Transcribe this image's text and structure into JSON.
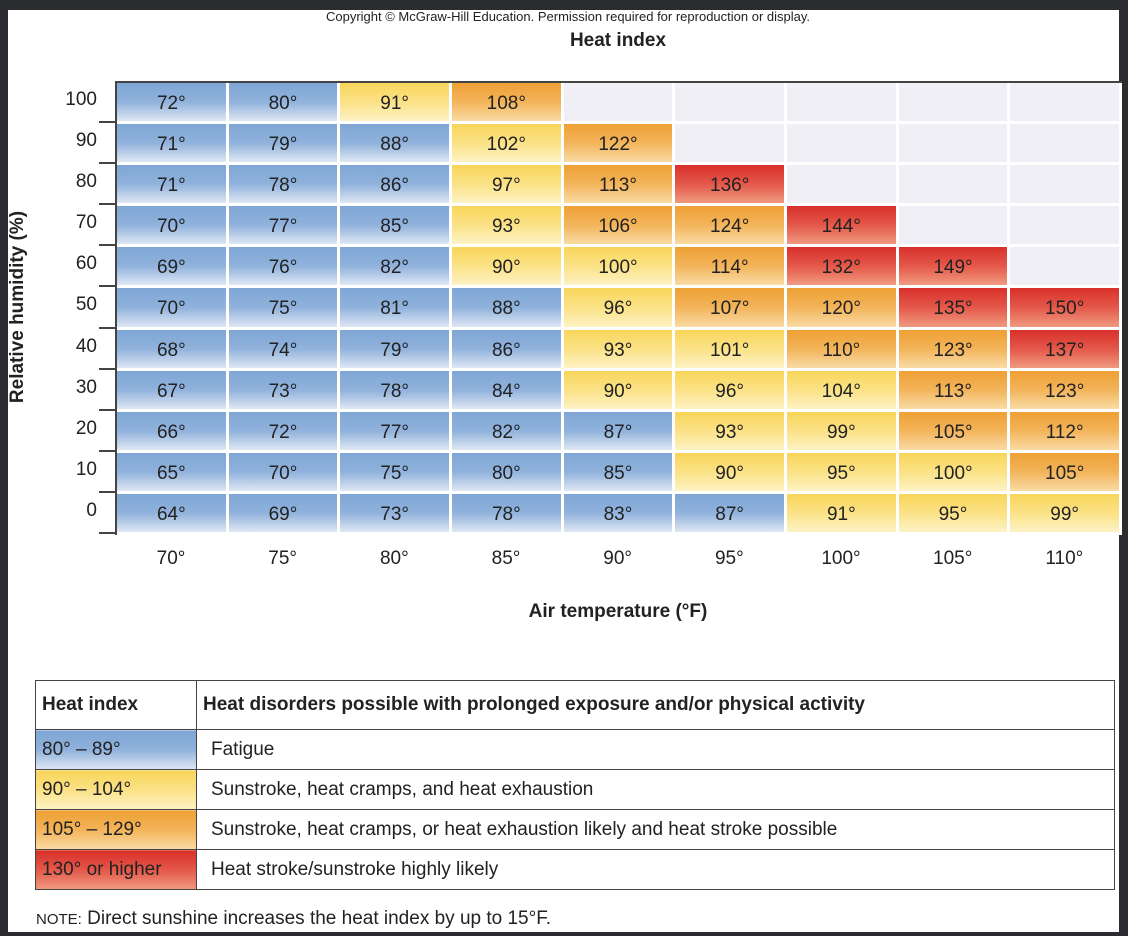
{
  "copyright": "Copyright © McGraw-Hill Education. Permission required for reproduction or display.",
  "chart_data": {
    "type": "heatmap",
    "title": "Heat index",
    "xlabel": "Air temperature (°F)",
    "ylabel": "Relative humidity (%)",
    "x": [
      "70°",
      "75°",
      "80°",
      "85°",
      "90°",
      "95°",
      "100°",
      "105°",
      "110°"
    ],
    "y": [
      "100",
      "90",
      "80",
      "70",
      "60",
      "50",
      "40",
      "30",
      "20",
      "10",
      "0"
    ],
    "values": [
      [
        72,
        80,
        91,
        108,
        null,
        null,
        null,
        null,
        null
      ],
      [
        71,
        79,
        88,
        102,
        122,
        null,
        null,
        null,
        null
      ],
      [
        71,
        78,
        86,
        97,
        113,
        136,
        null,
        null,
        null
      ],
      [
        70,
        77,
        85,
        93,
        106,
        124,
        144,
        null,
        null
      ],
      [
        69,
        76,
        82,
        90,
        100,
        114,
        132,
        149,
        null
      ],
      [
        70,
        75,
        81,
        88,
        96,
        107,
        120,
        135,
        150
      ],
      [
        68,
        74,
        79,
        86,
        93,
        101,
        110,
        123,
        137
      ],
      [
        67,
        73,
        78,
        84,
        90,
        96,
        104,
        113,
        123
      ],
      [
        66,
        72,
        77,
        82,
        87,
        93,
        99,
        105,
        112
      ],
      [
        65,
        70,
        75,
        80,
        85,
        90,
        95,
        100,
        105
      ],
      [
        64,
        69,
        73,
        78,
        83,
        87,
        91,
        95,
        99
      ]
    ],
    "value_suffix": "°",
    "color_bands": [
      {
        "max": 89,
        "color": "#7fa6d5"
      },
      {
        "min": 90,
        "max": 104,
        "color": "#f8d55a"
      },
      {
        "min": 105,
        "max": 129,
        "color": "#eea035"
      },
      {
        "min": 130,
        "color": "#d8302b"
      }
    ],
    "empty_color": "#efeff5"
  },
  "legend": {
    "header_index": "Heat index",
    "header_disorders": "Heat disorders possible with prolonged exposure and/or physical activity",
    "rows": [
      {
        "range": "80° – 89°",
        "band": "blue",
        "text": "Fatigue"
      },
      {
        "range": "90° – 104°",
        "band": "yellow",
        "text": "Sunstroke, heat cramps, and heat exhaustion"
      },
      {
        "range": "105° – 129°",
        "band": "orange",
        "text": "Sunstroke, heat cramps, or heat exhaustion likely and heat stroke possible"
      },
      {
        "range": "130° or higher",
        "band": "red",
        "text": "Heat stroke/sunstroke highly likely"
      }
    ]
  },
  "note": {
    "label": "NOTE:",
    "text": " Direct sunshine increases the heat index by up to 15°F."
  }
}
